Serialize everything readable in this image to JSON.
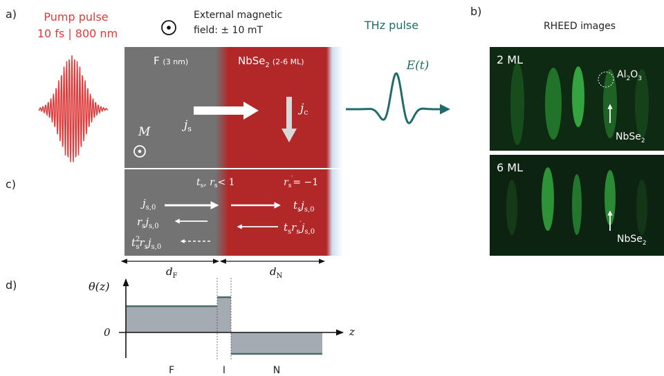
{
  "panels": {
    "a": "a)",
    "b": "b)",
    "c": "c)",
    "d": "d)"
  },
  "pump": {
    "line1": "Pump pulse",
    "line2": "10 fs | 800 nm",
    "color": "#e03a3a"
  },
  "field": {
    "line1": "External magnetic",
    "line2": "field: ± 10 mT"
  },
  "thz": {
    "label": "THz pulse",
    "field_label": "E(t)",
    "color": "#1f6b6b"
  },
  "layers": {
    "ferro": {
      "label": "F",
      "thickness": "(3 nm)",
      "color": "#737373"
    },
    "nbse2": {
      "label": "NbSe",
      "sub": "2",
      "thickness": "(2-6 ML)",
      "color": "#b22828"
    },
    "magnetization": "M",
    "spin_current": "j",
    "spin_current_sub": "s",
    "charge_current": "j",
    "charge_current_sub": "c"
  },
  "interface": {
    "transmission": "t",
    "transmission_sub": "s",
    "reflection": "r",
    "reflection_sub": "s",
    "condition": "< 1",
    "back_reflection": "r",
    "back_reflection_sub": "s",
    "back_condition": "= −1"
  },
  "currents": {
    "incident": "j",
    "incident_sub": "s,0",
    "reflected_r": "r",
    "reflected_r_sub": "s",
    "reflected_j": "j",
    "reflected_j_sub": "s,0",
    "third_t": "t",
    "third_t_sub": "s",
    "third_sup": "2",
    "third_r": "r",
    "third_r_sub": "s",
    "third_j": "j",
    "third_j_sub": "s,0",
    "trans_t": "t",
    "trans_t_sub": "s",
    "trans_j": "j",
    "trans_j_sub": "s,0",
    "back_t": "t",
    "back_t_sub": "s",
    "back_r": "r",
    "back_r_sub": "s",
    "back_j": "j",
    "back_j_sub": "s,0"
  },
  "dims": {
    "dF": "d",
    "dF_sub": "F",
    "dN": "d",
    "dN_sub": "N"
  },
  "profile": {
    "ylabel": "θ(z)",
    "xlabel": "z",
    "zero": "0",
    "regions": [
      "F",
      "I",
      "N"
    ],
    "fill_color": "#a5abb3",
    "line_color": "#4b6b6b"
  },
  "rheed": {
    "title": "RHEED images",
    "top": {
      "thickness": "2 ML",
      "substrate": "Al",
      "substrate_sub1": "2",
      "substrate_mid": "O",
      "substrate_sub2": "3",
      "film": "NbSe",
      "film_sub": "2"
    },
    "bottom": {
      "thickness": "6 ML",
      "film": "NbSe",
      "film_sub": "2"
    }
  }
}
